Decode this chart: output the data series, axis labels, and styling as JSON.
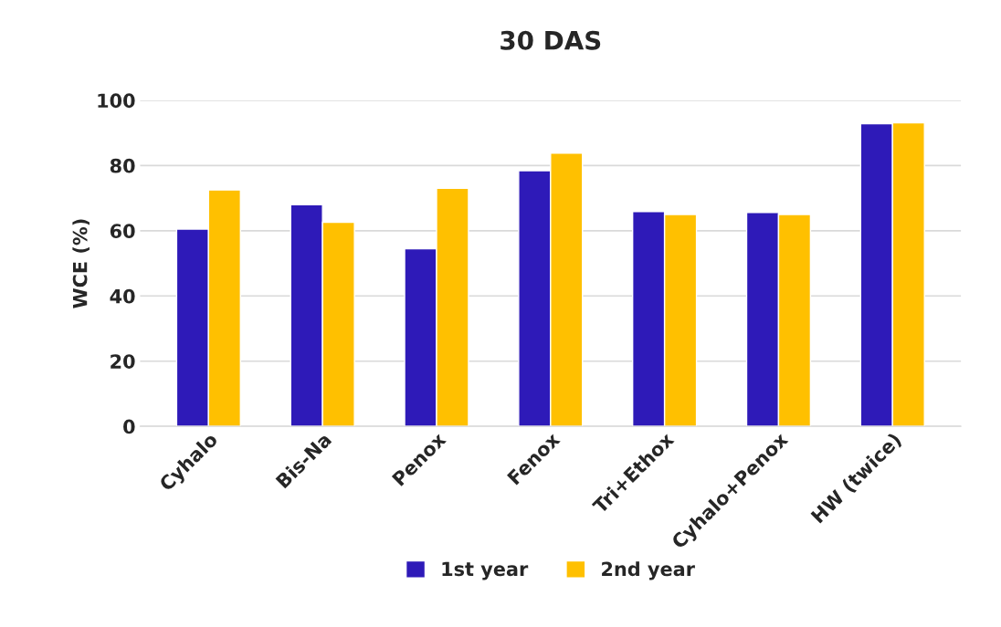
{
  "chart_data": {
    "type": "bar",
    "title": "30 DAS",
    "ylabel": "WCE (%)",
    "categories": [
      "Cyhalo",
      "Bis-Na",
      "Penox",
      "Fenox",
      "Tri+Ethox",
      "Cyhalo+Penox",
      "HW (twice)"
    ],
    "series": [
      {
        "name": "1st year",
        "color": "#2e1ab8",
        "values": [
          60.5,
          68,
          54.5,
          78.4,
          65.9,
          65.6,
          92.8
        ]
      },
      {
        "name": "2nd year",
        "color": "#ffc000",
        "values": [
          72.5,
          62.6,
          73,
          83.8,
          65,
          65,
          93.1
        ]
      }
    ],
    "ylim": [
      0,
      100
    ],
    "yticks": [
      0,
      20,
      40,
      60,
      80,
      100
    ],
    "grid": "y",
    "legend": "bottom"
  }
}
